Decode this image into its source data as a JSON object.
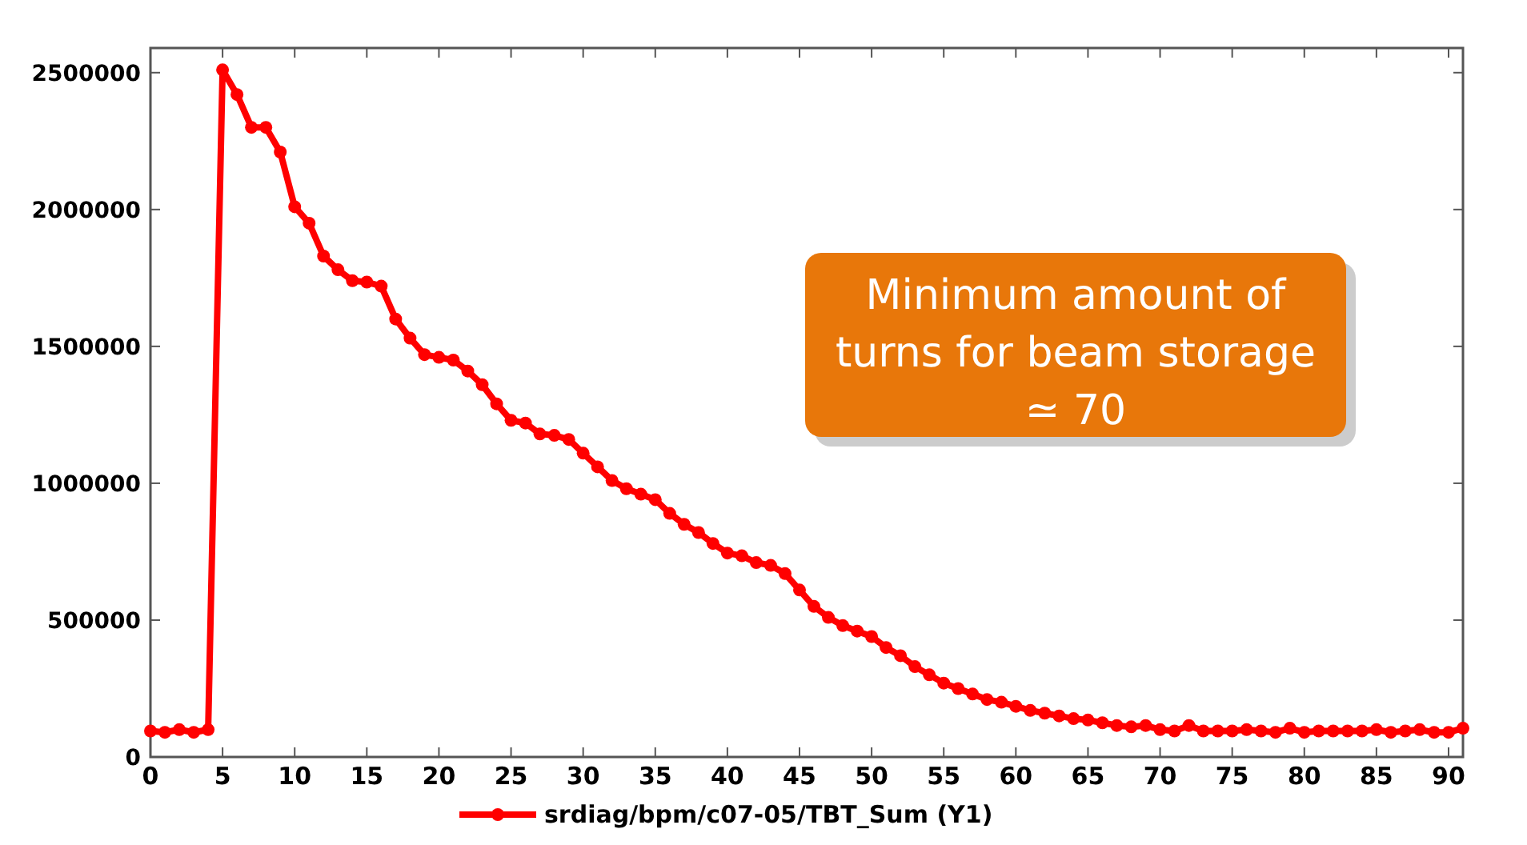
{
  "chart_data": {
    "type": "line",
    "x": [
      0,
      1,
      2,
      3,
      4,
      5,
      6,
      7,
      8,
      9,
      10,
      11,
      12,
      13,
      14,
      15,
      16,
      17,
      18,
      19,
      20,
      21,
      22,
      23,
      24,
      25,
      26,
      27,
      28,
      29,
      30,
      31,
      32,
      33,
      34,
      35,
      36,
      37,
      38,
      39,
      40,
      41,
      42,
      43,
      44,
      45,
      46,
      47,
      48,
      49,
      50,
      51,
      52,
      53,
      54,
      55,
      56,
      57,
      58,
      59,
      60,
      61,
      62,
      63,
      64,
      65,
      66,
      67,
      68,
      69,
      70,
      71,
      72,
      73,
      74,
      75,
      76,
      77,
      78,
      79,
      80,
      81,
      82,
      83,
      84,
      85,
      86,
      87,
      88,
      89,
      90,
      91
    ],
    "series": [
      {
        "name": "srdiag/bpm/c07-05/TBT_Sum (Y1)",
        "color": "#ff0000",
        "values": [
          95000,
          90000,
          100000,
          90000,
          100000,
          2510000,
          2420000,
          2300000,
          2300000,
          2210000,
          2010000,
          1950000,
          1830000,
          1780000,
          1740000,
          1735000,
          1720000,
          1600000,
          1530000,
          1470000,
          1460000,
          1450000,
          1410000,
          1360000,
          1290000,
          1230000,
          1220000,
          1180000,
          1175000,
          1160000,
          1110000,
          1060000,
          1010000,
          980000,
          960000,
          940000,
          890000,
          850000,
          820000,
          780000,
          745000,
          735000,
          710000,
          700000,
          670000,
          610000,
          550000,
          510000,
          480000,
          460000,
          440000,
          400000,
          370000,
          330000,
          300000,
          270000,
          250000,
          230000,
          210000,
          200000,
          185000,
          170000,
          160000,
          150000,
          140000,
          135000,
          125000,
          115000,
          110000,
          115000,
          100000,
          95000,
          115000,
          95000,
          95000,
          95000,
          100000,
          95000,
          90000,
          105000,
          90000,
          95000,
          95000,
          95000,
          95000,
          100000,
          90000,
          95000,
          100000,
          90000,
          90000,
          105000
        ]
      }
    ],
    "xlim": [
      0,
      91
    ],
    "ylim": [
      0,
      2590000
    ],
    "xticks": [
      0,
      5,
      10,
      15,
      20,
      25,
      30,
      35,
      40,
      45,
      50,
      55,
      60,
      65,
      70,
      75,
      80,
      85,
      90
    ],
    "yticks": [
      0,
      500000,
      1000000,
      1500000,
      2000000,
      2500000
    ],
    "marker": "circle",
    "line_style": "solid",
    "grid": false,
    "legend": "bottom",
    "annotations": [
      "Minimum amount of turns for beam storage ≃ 70"
    ]
  }
}
